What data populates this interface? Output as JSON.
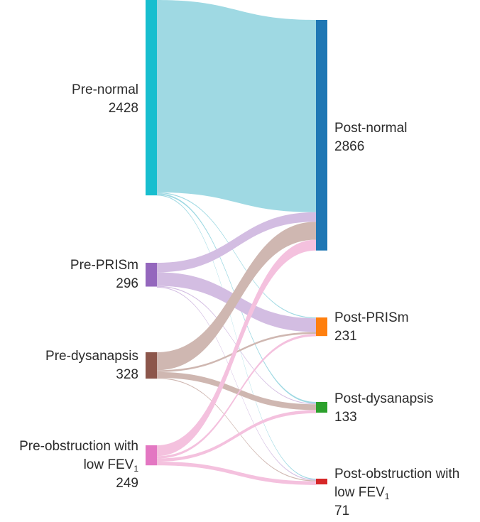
{
  "chart_data": {
    "type": "sankey",
    "sources": [
      {
        "id": "pre_normal",
        "name": "Pre-normal",
        "value_label": "2428",
        "value": 2428,
        "color": "#17becf"
      },
      {
        "id": "pre_prism",
        "name": "Pre-PRISm",
        "value_label": "296",
        "value": 296,
        "color": "#9467bd"
      },
      {
        "id": "pre_dys",
        "name": "Pre-dysanapsis",
        "value_label": "328",
        "value": 328,
        "color": "#8c564b"
      },
      {
        "id": "pre_obs",
        "name_line1": "Pre-obstruction with",
        "name_line2": "low FEV",
        "name_sub": "1",
        "value_label": "249",
        "value": 249,
        "color": "#e377c2"
      }
    ],
    "targets": [
      {
        "id": "post_normal",
        "name": "Post-normal",
        "value_label": "2866",
        "value": 2866,
        "color": "#1f77b4"
      },
      {
        "id": "post_prism",
        "name": "Post-PRISm",
        "value_label": "231",
        "value": 231,
        "color": "#ff7f0e"
      },
      {
        "id": "post_dys",
        "name": "Post-dysanapsis",
        "value_label": "133",
        "value": 133,
        "color": "#2ca02c"
      },
      {
        "id": "post_obs",
        "name_line1": "Post-obstruction with",
        "name_line2": "low FEV",
        "name_sub": "1",
        "value_label": "71",
        "value": 71,
        "color": "#d62728"
      }
    ],
    "flows": [
      {
        "source": "pre_normal",
        "target": "post_normal",
        "value": 2391,
        "color": "#9fd9e3"
      },
      {
        "source": "pre_normal",
        "target": "post_prism",
        "value": 8,
        "color": "#9fd9e3"
      },
      {
        "source": "pre_normal",
        "target": "post_dys",
        "value": 18,
        "color": "#9fd9e3"
      },
      {
        "source": "pre_normal",
        "target": "post_obs",
        "value": 11,
        "color": "#9fd9e3"
      },
      {
        "source": "pre_prism",
        "target": "post_normal",
        "value": 118,
        "color": "#d3bde2"
      },
      {
        "source": "pre_prism",
        "target": "post_prism",
        "value": 170,
        "color": "#d3bde2"
      },
      {
        "source": "pre_prism",
        "target": "post_dys",
        "value": 4,
        "color": "#d3bde2"
      },
      {
        "source": "pre_prism",
        "target": "post_obs",
        "value": 4,
        "color": "#d3bde2"
      },
      {
        "source": "pre_dys",
        "target": "post_normal",
        "value": 223,
        "color": "#cfb7b1"
      },
      {
        "source": "pre_dys",
        "target": "post_prism",
        "value": 23,
        "color": "#cfb7b1"
      },
      {
        "source": "pre_dys",
        "target": "post_dys",
        "value": 72,
        "color": "#cfb7b1"
      },
      {
        "source": "pre_dys",
        "target": "post_obs",
        "value": 10,
        "color": "#cfb7b1"
      },
      {
        "source": "pre_obs",
        "target": "post_normal",
        "value": 134,
        "color": "#f4c1de"
      },
      {
        "source": "pre_obs",
        "target": "post_prism",
        "value": 30,
        "color": "#f4c1de"
      },
      {
        "source": "pre_obs",
        "target": "post_dys",
        "value": 39,
        "color": "#f4c1de"
      },
      {
        "source": "pre_obs",
        "target": "post_obs",
        "value": 46,
        "color": "#f4c1de"
      }
    ]
  }
}
